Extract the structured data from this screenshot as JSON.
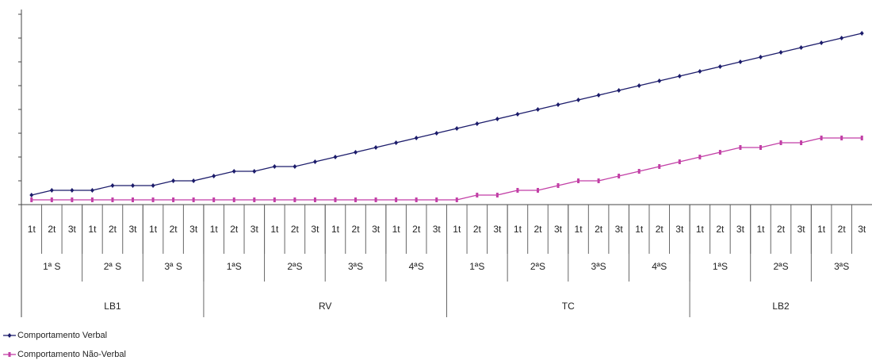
{
  "chart_data": {
    "type": "line",
    "categories": [
      "1t",
      "2t",
      "3t",
      "1t",
      "2t",
      "3t",
      "1t",
      "2t",
      "3t",
      "1t",
      "2t",
      "3t",
      "1t",
      "2t",
      "3t",
      "1t",
      "2t",
      "3t",
      "1t",
      "2t",
      "3t",
      "1t",
      "2t",
      "3t",
      "1t",
      "2t",
      "3t",
      "1t",
      "2t",
      "3t",
      "1t",
      "2t",
      "3t",
      "1t",
      "2t",
      "3t",
      "1t",
      "2t",
      "3t",
      "1t",
      "2t",
      "3t"
    ],
    "groups": [
      {
        "name": "LB1",
        "weeks": [
          "1ª S",
          "2ª S",
          "3ª S"
        ]
      },
      {
        "name": "RV",
        "weeks": [
          "1ªS",
          "2ªS",
          "3ªS",
          "4ªS"
        ]
      },
      {
        "name": "TC",
        "weeks": [
          "1ªS",
          "2ªS",
          "3ªS",
          "4ªS"
        ]
      },
      {
        "name": "LB2",
        "weeks": [
          "1ªS",
          "2ªS",
          "3ªS"
        ]
      }
    ],
    "series": [
      {
        "name": "Comportamento Verbal",
        "color": "#1c1c6b",
        "marker": "diamond",
        "values": [
          0.4,
          0.6,
          0.6,
          0.6,
          0.8,
          0.8,
          0.8,
          1.0,
          1.0,
          1.2,
          1.4,
          1.4,
          1.6,
          1.6,
          1.8,
          2.0,
          2.2,
          2.4,
          2.6,
          2.8,
          3.0,
          3.2,
          3.4,
          3.6,
          3.8,
          4.0,
          4.2,
          4.4,
          4.6,
          4.8,
          5.0,
          5.2,
          5.4,
          5.6,
          5.8,
          6.0,
          6.2,
          6.4,
          6.6,
          6.8,
          7.0,
          7.2
        ]
      },
      {
        "name": "Comportamento Não-Verbal",
        "color": "#c23fa6",
        "marker": "square",
        "values": [
          0.2,
          0.2,
          0.2,
          0.2,
          0.2,
          0.2,
          0.2,
          0.2,
          0.2,
          0.2,
          0.2,
          0.2,
          0.2,
          0.2,
          0.2,
          0.2,
          0.2,
          0.2,
          0.2,
          0.2,
          0.2,
          0.2,
          0.4,
          0.4,
          0.6,
          0.6,
          0.8,
          1.0,
          1.0,
          1.2,
          1.4,
          1.6,
          1.8,
          2.0,
          2.2,
          2.4,
          2.4,
          2.6,
          2.6,
          2.8,
          2.8,
          2.8
        ]
      }
    ],
    "ylim": [
      0,
      8
    ],
    "yticks": [
      0,
      1,
      2,
      3,
      4,
      5,
      6,
      7,
      8
    ],
    "legend": "bottom-left"
  }
}
